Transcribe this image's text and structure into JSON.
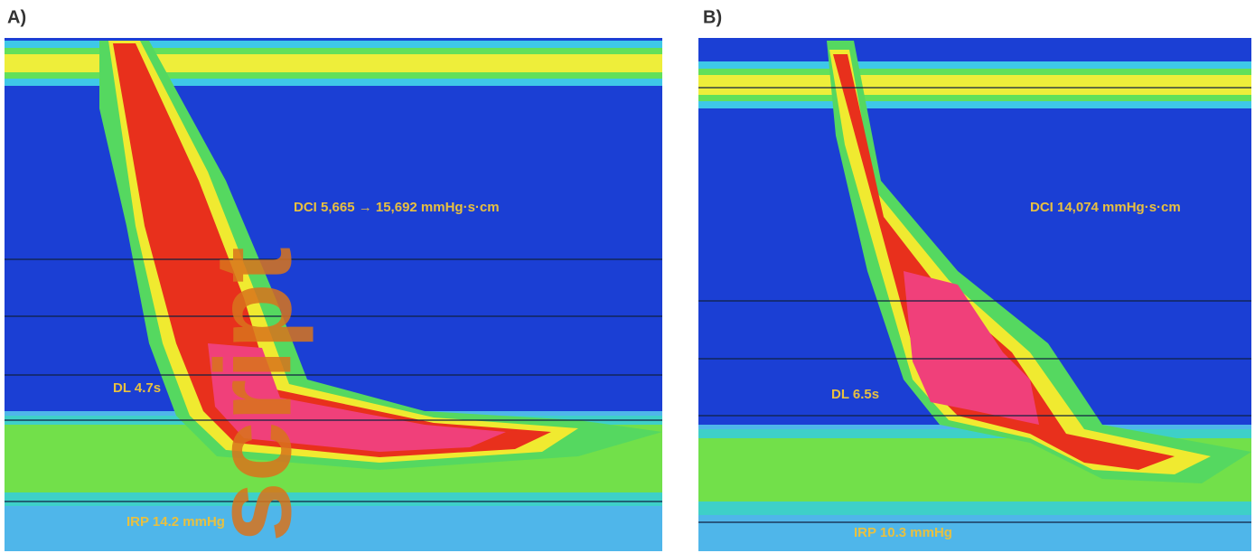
{
  "panels": [
    {
      "label": "A)",
      "dci": "DCI 5,665 → 15,692 mmHg·s·cm",
      "dl": "DL 4.7s",
      "irp": "IRP 14.2 mmHg"
    },
    {
      "label": "B)",
      "dci": "DCI 14,074 mmHg·s·cm",
      "dl": "DL 6.5s",
      "irp": "IRP 10.3 mmHg"
    }
  ],
  "watermark": "script"
}
